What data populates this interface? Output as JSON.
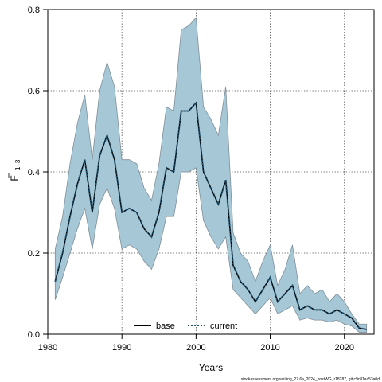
{
  "chart_data": {
    "type": "area",
    "xlabel": "Years",
    "ylabel_main": "F",
    "ylabel_sub": "1–3",
    "xlim": [
      1980,
      2024
    ],
    "ylim": [
      0,
      0.8
    ],
    "x_ticks": [
      1980,
      1990,
      2000,
      2010,
      2020
    ],
    "y_ticks": [
      0.0,
      0.2,
      0.4,
      0.6,
      0.8
    ],
    "x_tick_labels": [
      "1980",
      "1990",
      "2000",
      "2010",
      "2020"
    ],
    "y_tick_labels": [
      "0.0",
      "0.2",
      "0.4",
      "0.6",
      "0.8"
    ],
    "grid": true,
    "legend_position": "bottom",
    "legend": [
      {
        "label": "base",
        "style": "solid",
        "color": "#000000"
      },
      {
        "label": "current",
        "style": "dotted",
        "color": "#1a4f6e"
      }
    ],
    "band_color": "#a6c7d6",
    "band_edge_color": "#7f8f99",
    "x": [
      1981,
      1982,
      1983,
      1984,
      1985,
      1986,
      1987,
      1988,
      1989,
      1990,
      1991,
      1992,
      1993,
      1994,
      1995,
      1996,
      1997,
      1998,
      1999,
      2000,
      2001,
      2002,
      2003,
      2004,
      2005,
      2006,
      2007,
      2008,
      2009,
      2010,
      2011,
      2012,
      2013,
      2014,
      2015,
      2016,
      2017,
      2018,
      2019,
      2020,
      2021,
      2022,
      2023
    ],
    "series": [
      {
        "name": "base",
        "values": [
          0.13,
          0.2,
          0.29,
          0.37,
          0.43,
          0.3,
          0.44,
          0.49,
          0.43,
          0.3,
          0.31,
          0.3,
          0.26,
          0.24,
          0.3,
          0.41,
          0.4,
          0.55,
          0.55,
          0.57,
          0.4,
          0.36,
          0.32,
          0.38,
          0.17,
          0.13,
          0.11,
          0.08,
          0.11,
          0.14,
          0.08,
          0.1,
          0.12,
          0.06,
          0.07,
          0.06,
          0.06,
          0.05,
          0.06,
          0.05,
          0.04,
          0.015,
          0.012
        ]
      },
      {
        "name": "current",
        "values": [
          0.13,
          0.2,
          0.29,
          0.37,
          0.43,
          0.3,
          0.44,
          0.49,
          0.43,
          0.3,
          0.31,
          0.3,
          0.26,
          0.24,
          0.3,
          0.41,
          0.4,
          0.55,
          0.55,
          0.57,
          0.4,
          0.36,
          0.32,
          0.38,
          0.17,
          0.13,
          0.11,
          0.08,
          0.11,
          0.14,
          0.08,
          0.1,
          0.12,
          0.06,
          0.07,
          0.06,
          0.06,
          0.05,
          0.06,
          0.05,
          0.04,
          0.015,
          0.012
        ]
      }
    ],
    "band_upper": [
      0.21,
      0.29,
      0.42,
      0.52,
      0.59,
      0.43,
      0.6,
      0.67,
      0.61,
      0.43,
      0.43,
      0.42,
      0.36,
      0.33,
      0.42,
      0.56,
      0.55,
      0.75,
      0.76,
      0.78,
      0.56,
      0.53,
      0.49,
      0.61,
      0.25,
      0.2,
      0.18,
      0.13,
      0.18,
      0.22,
      0.12,
      0.16,
      0.22,
      0.1,
      0.12,
      0.1,
      0.11,
      0.08,
      0.1,
      0.08,
      0.05,
      0.025,
      0.025
    ],
    "band_lower": [
      0.085,
      0.14,
      0.2,
      0.26,
      0.31,
      0.21,
      0.32,
      0.36,
      0.31,
      0.21,
      0.22,
      0.21,
      0.18,
      0.16,
      0.21,
      0.29,
      0.29,
      0.4,
      0.4,
      0.41,
      0.28,
      0.24,
      0.21,
      0.24,
      0.11,
      0.09,
      0.07,
      0.05,
      0.07,
      0.09,
      0.05,
      0.06,
      0.07,
      0.035,
      0.04,
      0.035,
      0.035,
      0.03,
      0.035,
      0.025,
      0.02,
      0.005,
      0.005
    ]
  },
  "footnote": "stockassessment.org,whiting_27.6a_2024_postWG, r18287, git:c9c81ac53a0d"
}
